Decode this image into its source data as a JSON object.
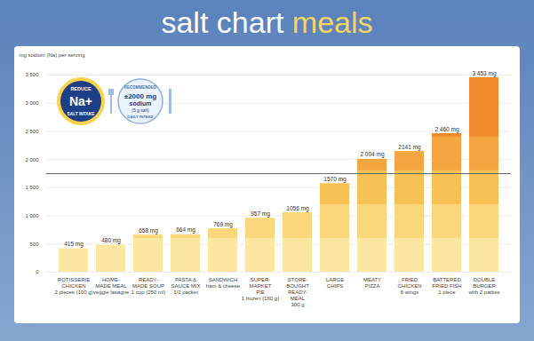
{
  "chart_data": {
    "type": "bar",
    "title": "salt chart meals",
    "ylabel": "mg sodium (Na) per serving",
    "categories": [
      "ROTISSERIE\nCHICKEN\n2 pieces (100 g)",
      "HOME-\nMADE MEAL\nveggie lasagne",
      "READY-\nMADE SOUP\n1 cup (250 ml)",
      "PASTA &\nSAUCE MIX\n1/2 packet",
      "SANDWICH\nham & cheese",
      "SUPER-\nMARKET\nPIE\n1 frozen (160 g)",
      "STORE-\nBOUGHT\nREADY-\nMEAL\n300 g",
      "LARGE\nCHIPS",
      "MEATY\nPIZZA",
      "FRIED\nCHICKEN\n6 wings",
      "BATTERED\nFRIED FISH\n1 piece",
      "DOUBLE\nBURGER\nwith 2 patties"
    ],
    "values": [
      415,
      480,
      658,
      664,
      769,
      957,
      1056,
      1570,
      2004,
      2141,
      2460,
      3453
    ],
    "value_labels": [
      "415 mg",
      "480 mg",
      "658 mg",
      "664 mg",
      "769 mg",
      "957 mg",
      "1056 mg",
      "1570 mg",
      "2 004 mg",
      "2141 mg",
      "2 460 mg",
      "3 453 mg"
    ],
    "data_labels": true,
    "ylim": [
      0,
      3500
    ],
    "yticks": [
      0,
      500,
      {
        "value": 1000,
        "label": "1 000"
      },
      {
        "value": 1500,
        "label": "1 500"
      },
      {
        "value": 2000,
        "label": "2 000"
      },
      {
        "value": 2500,
        "label": "2 500"
      },
      {
        "value": 3000,
        "label": "3 000"
      },
      {
        "value": 3500,
        "label": "3 500"
      }
    ],
    "grid": true,
    "reference_line": 1750,
    "color_bands": {
      "limits": [
        0,
        600,
        1200,
        1800,
        2400
      ],
      "colors": [
        "#fce7a0",
        "#fbd67a",
        "#f8c156",
        "#f5a642",
        "#f08a2c"
      ]
    },
    "badges": [
      {
        "lines": [
          "REDUCE",
          "Na+",
          "SALT INTAKE"
        ]
      },
      {
        "lines": [
          "RECOMMENDED",
          "±2000 mg",
          "sodium",
          "(5 g salt)",
          "DAILY INTAKE"
        ]
      }
    ]
  }
}
